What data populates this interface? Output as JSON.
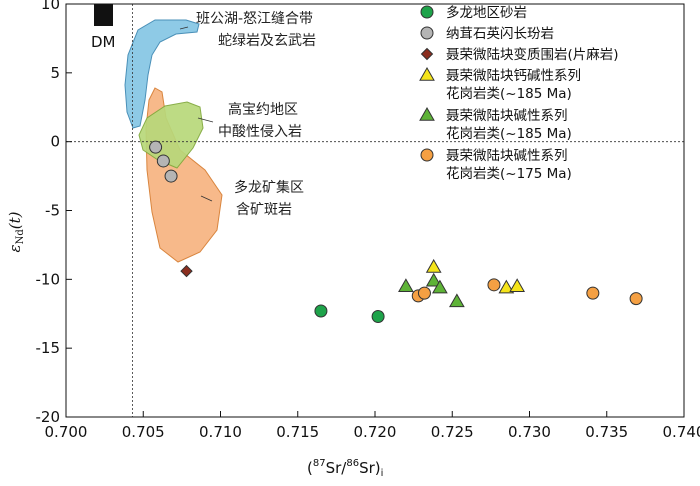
{
  "chart_data": {
    "type": "scatter",
    "xlabel_prefix": "(",
    "xlabel_sup1": "87",
    "xlabel_mid": "Sr/",
    "xlabel_sup2": "86",
    "xlabel_end": "Sr)",
    "xlabel_sub": "i",
    "ylabel_main": "ε",
    "ylabel_sub": "Nd",
    "ylabel_end": "(t)",
    "xlim": [
      0.7,
      0.74
    ],
    "ylim": [
      -20,
      10
    ],
    "xticks": [
      "0.700",
      "0.705",
      "0.710",
      "0.715",
      "0.720",
      "0.725",
      "0.730",
      "0.735",
      "0.740"
    ],
    "yticks": [
      "10",
      "5",
      "0",
      "-5",
      "-10",
      "-15",
      "-20"
    ],
    "ref_lines": {
      "x": 0.7043,
      "y": 0
    },
    "dm_label": "DM",
    "annotations": {
      "ophiolite": [
        "班公湖-怒江缝合带",
        "蛇绿岩及玄武岩"
      ],
      "gaobaoyue": [
        "高宝约地区",
        "中酸性侵入岩"
      ],
      "duolong": [
        "多龙矿集区",
        "含矿斑岩"
      ]
    },
    "fields": [
      {
        "name": "ophiolite",
        "color": "#8ecae6"
      },
      {
        "name": "gaobaoyue",
        "color": "#b8d87a"
      },
      {
        "name": "duolong",
        "color": "#f7b98a"
      }
    ],
    "series": [
      {
        "name": "多龙地区砂岩",
        "marker": "circle",
        "color": "#1ea34a",
        "points": [
          [
            0.7165,
            -12.3
          ],
          [
            0.7202,
            -12.7
          ]
        ]
      },
      {
        "name": "纳茸石英闪长玢岩",
        "marker": "circle",
        "color": "#b5b5b5",
        "points": [
          [
            0.7058,
            -0.4
          ],
          [
            0.7063,
            -1.4
          ],
          [
            0.7068,
            -2.5
          ]
        ]
      },
      {
        "name": "聂荣微陆块变质围岩(片麻岩)",
        "marker": "diamond",
        "color": "#8b2e1f",
        "points": [
          [
            0.7078,
            -9.4
          ]
        ]
      },
      {
        "name": "聂荣微陆块钙碱性系列",
        "name2": "花岗岩类(~185 Ma)",
        "marker": "triangle",
        "color": "#f5e41a",
        "points": [
          [
            0.7238,
            -9.1
          ],
          [
            0.7285,
            -10.6
          ],
          [
            0.7292,
            -10.5
          ]
        ]
      },
      {
        "name": "聂荣微陆块碱性系列",
        "name2": "花岗岩类(~185 Ma)",
        "marker": "triangle",
        "color": "#5eb337",
        "points": [
          [
            0.722,
            -10.5
          ],
          [
            0.7238,
            -10.1
          ],
          [
            0.7242,
            -10.6
          ],
          [
            0.7253,
            -11.6
          ]
        ]
      },
      {
        "name": "聂荣微陆块碱性系列",
        "name2": "花岗岩类(~175 Ma)",
        "marker": "circle",
        "color": "#f5a043",
        "points": [
          [
            0.7228,
            -11.2
          ],
          [
            0.7232,
            -11.0
          ],
          [
            0.7277,
            -10.4
          ],
          [
            0.7341,
            -11.0
          ],
          [
            0.7369,
            -11.4
          ]
        ]
      }
    ]
  }
}
